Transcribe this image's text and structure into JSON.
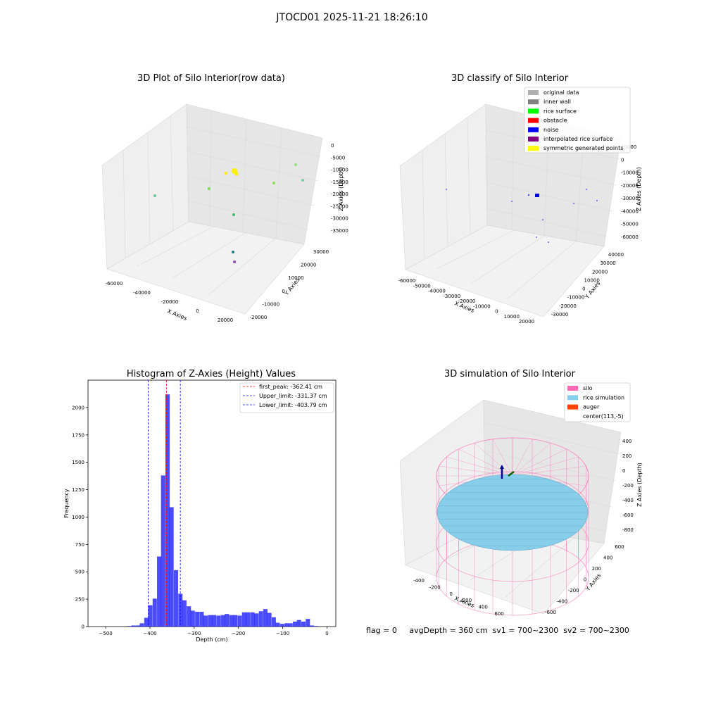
{
  "suptitle": "JTOCD01 2025-11-21 18:26:10",
  "panels": {
    "raw": {
      "title": "3D Plot of Silo Interior(row data)",
      "xlabel": "X Axies",
      "ylabel": "Y Axies",
      "zlabel": "Z Axies (Depth)",
      "xticks": [
        "-60000",
        "-40000",
        "-20000",
        "0",
        "20000"
      ],
      "yticks": [
        "-20000",
        "-10000",
        "0",
        "10000",
        "20000",
        "30000"
      ],
      "zticks": [
        "0",
        "-5000",
        "-10000",
        "-15000",
        "-20000",
        "-25000",
        "-30000",
        "-35000"
      ]
    },
    "classify": {
      "title": "3D classify of Silo Interior",
      "xlabel": "X Axies",
      "ylabel": "Y Axies",
      "zlabel": "Z Axies (Depth)",
      "xticks": [
        "-60000",
        "-50000",
        "-40000",
        "-30000",
        "-20000",
        "-10000",
        "0",
        "10000",
        "20000"
      ],
      "yticks": [
        "-30000",
        "-20000",
        "-10000",
        "0",
        "10000",
        "20000",
        "30000",
        "40000"
      ],
      "zticks": [
        "10000",
        "0",
        "-10000",
        "-20000",
        "-30000",
        "-40000",
        "-50000",
        "-60000"
      ],
      "legend": [
        {
          "label": "original data",
          "color": "#b0b0b0"
        },
        {
          "label": "inner wall",
          "color": "#808080"
        },
        {
          "label": "rice surface",
          "color": "#00ff00"
        },
        {
          "label": "obstacle",
          "color": "#ff0000"
        },
        {
          "label": "noise",
          "color": "#0000ff"
        },
        {
          "label": "interpolated rice surface",
          "color": "#800080"
        },
        {
          "label": "symmetric generated points",
          "color": "#ffff00"
        }
      ]
    },
    "sim": {
      "title": "3D simulation of Silo Interior",
      "xlabel": "X Axies",
      "ylabel": "Y Axies",
      "zlabel": "Z Axies (Depth)",
      "xticks": [
        "-400",
        "-200",
        "0",
        "200",
        "400",
        "600"
      ],
      "yticks": [
        "-600",
        "-400",
        "-200",
        "0",
        "200",
        "400",
        "600"
      ],
      "zticks": [
        "400",
        "200",
        "0",
        "-200",
        "-400",
        "-600",
        "-800"
      ],
      "legend": [
        {
          "label": "silo",
          "color": "#ff69b4"
        },
        {
          "label": "rice simulation",
          "color": "#87ceeb"
        },
        {
          "label": "auger",
          "color": "#ff4500"
        },
        {
          "label": "center(113,-5)",
          "color": "none"
        }
      ]
    }
  },
  "chart_data": {
    "type": "bar",
    "title": "Histogram of Z-Axies (Height) Values",
    "xlabel": "Depth (cm)",
    "ylabel": "Frequency",
    "xlim": [
      -540,
      20
    ],
    "ylim": [
      0,
      2250
    ],
    "xticks": [
      -500,
      -400,
      -300,
      -200,
      -100,
      0
    ],
    "yticks": [
      0,
      250,
      500,
      750,
      1000,
      1250,
      1500,
      1750,
      2000
    ],
    "bin_width": 9.6,
    "color": "#0000ff",
    "bins": [
      {
        "x": -452,
        "v": 5
      },
      {
        "x": -442,
        "v": 10
      },
      {
        "x": -432,
        "v": 10
      },
      {
        "x": -423,
        "v": 30
      },
      {
        "x": -413,
        "v": 80
      },
      {
        "x": -404,
        "v": 195
      },
      {
        "x": -394,
        "v": 255
      },
      {
        "x": -384,
        "v": 640
      },
      {
        "x": -375,
        "v": 1380
      },
      {
        "x": -365,
        "v": 2120
      },
      {
        "x": -356,
        "v": 1090
      },
      {
        "x": -346,
        "v": 515
      },
      {
        "x": -336,
        "v": 300
      },
      {
        "x": -327,
        "v": 240
      },
      {
        "x": -317,
        "v": 185
      },
      {
        "x": -308,
        "v": 145
      },
      {
        "x": -298,
        "v": 135
      },
      {
        "x": -288,
        "v": 135
      },
      {
        "x": -279,
        "v": 100
      },
      {
        "x": -269,
        "v": 105
      },
      {
        "x": -260,
        "v": 105
      },
      {
        "x": -250,
        "v": 100
      },
      {
        "x": -240,
        "v": 105
      },
      {
        "x": -231,
        "v": 115
      },
      {
        "x": -221,
        "v": 105
      },
      {
        "x": -212,
        "v": 105
      },
      {
        "x": -202,
        "v": 100
      },
      {
        "x": -192,
        "v": 130
      },
      {
        "x": -183,
        "v": 130
      },
      {
        "x": -173,
        "v": 130
      },
      {
        "x": -164,
        "v": 120
      },
      {
        "x": -154,
        "v": 140
      },
      {
        "x": -144,
        "v": 160
      },
      {
        "x": -135,
        "v": 125
      },
      {
        "x": -125,
        "v": 85
      },
      {
        "x": -116,
        "v": 35
      },
      {
        "x": -106,
        "v": 25
      },
      {
        "x": -96,
        "v": 30
      },
      {
        "x": -87,
        "v": 30
      },
      {
        "x": -77,
        "v": 45
      },
      {
        "x": -68,
        "v": 60
      },
      {
        "x": -58,
        "v": 45
      },
      {
        "x": -48,
        "v": 70
      },
      {
        "x": -39,
        "v": 10
      },
      {
        "x": -29,
        "v": 5
      }
    ],
    "vlines": [
      {
        "label": "first_peak: -362.41 cm",
        "x": -362.41,
        "color": "#ff0000"
      },
      {
        "label": "Upper_limit: -331.37 cm",
        "x": -331.37,
        "color": "#0000ff"
      },
      {
        "label": "Lower_limit: -403.79 cm",
        "x": -403.79,
        "color": "#0000ff"
      }
    ]
  },
  "footer": {
    "flag": "flag = 0",
    "avgDepth": "avgDepth = 360 cm",
    "sv1": "sv1 = 700~2300",
    "sv2": "sv2 = 700~2300"
  }
}
